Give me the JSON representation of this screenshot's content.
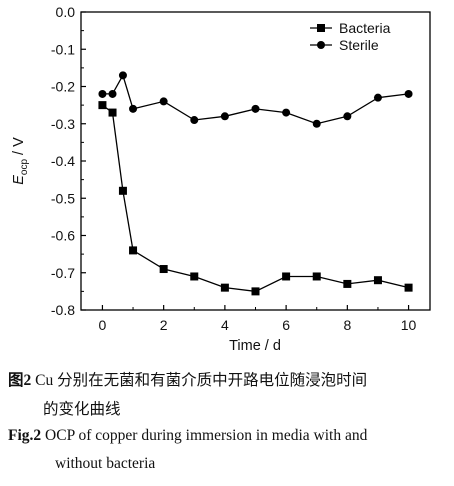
{
  "chart_data": {
    "type": "line",
    "xlabel": "Time / d",
    "ylabel": {
      "main": "E",
      "sub": "ocp",
      "unit": " / V"
    },
    "xlim": [
      -0.7,
      10.7
    ],
    "ylim": [
      -0.8,
      0.0
    ],
    "xticks": [
      0,
      2,
      4,
      6,
      8,
      10
    ],
    "yticks": [
      0.0,
      -0.1,
      -0.2,
      -0.3,
      -0.4,
      -0.5,
      -0.6,
      -0.7,
      -0.8
    ],
    "ytick_labels": [
      "0.0",
      "-0.1",
      "-0.2",
      "-0.3",
      "-0.4",
      "-0.5",
      "-0.6",
      "-0.7",
      "-0.8"
    ],
    "xtick_labels": [
      "0",
      "2",
      "4",
      "6",
      "8",
      "10"
    ],
    "legend_position": "top-right",
    "series": [
      {
        "name": "Bacteria",
        "marker": "square",
        "x": [
          0,
          0.33,
          0.67,
          1,
          2,
          3,
          4,
          5,
          6,
          7,
          8,
          9,
          10
        ],
        "y": [
          -0.25,
          -0.27,
          -0.48,
          -0.64,
          -0.69,
          -0.71,
          -0.74,
          -0.75,
          -0.71,
          -0.71,
          -0.73,
          -0.72,
          -0.74
        ]
      },
      {
        "name": "Sterile",
        "marker": "circle",
        "x": [
          0,
          0.33,
          0.67,
          1,
          2,
          3,
          4,
          5,
          6,
          7,
          8,
          9,
          10
        ],
        "y": [
          -0.22,
          -0.22,
          -0.17,
          -0.26,
          -0.24,
          -0.29,
          -0.28,
          -0.26,
          -0.27,
          -0.3,
          -0.28,
          -0.23,
          -0.22
        ]
      }
    ]
  },
  "caption": {
    "cn_label": "图2",
    "cn_line1_rest": " Cu 分别在无菌和有菌介质中开路电位随浸泡时间",
    "cn_line2": "的变化曲线",
    "en_label": "Fig.2",
    "en_line1_rest": " OCP of copper during immersion in media with and",
    "en_line2": "without bacteria"
  }
}
